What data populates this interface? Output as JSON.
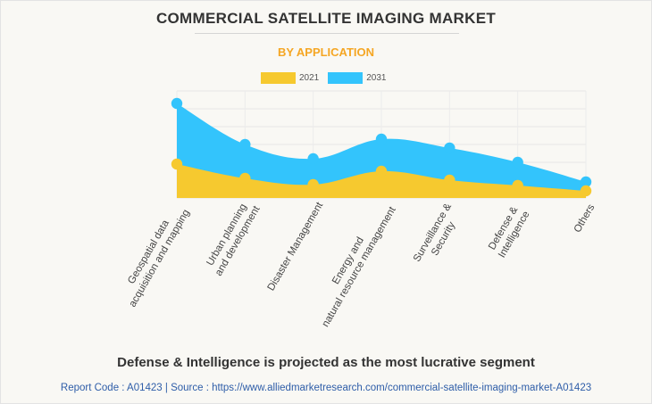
{
  "chart_data": {
    "type": "area",
    "title": "COMMERCIAL SATELLITE IMAGING MARKET",
    "subtitle": "BY APPLICATION",
    "categories": [
      [
        "Geospatial data",
        "acquisition and mapping"
      ],
      [
        "Urban planning",
        "and development"
      ],
      [
        "Disaster Management"
      ],
      [
        "Energy and",
        "natural resource management"
      ],
      [
        "Surveillance &",
        "Security"
      ],
      [
        "Defense &",
        "Intelligence"
      ],
      [
        "Others"
      ]
    ],
    "series": [
      {
        "name": "2021",
        "color": "#f6c92f",
        "values": [
          1.9,
          1.1,
          0.75,
          1.5,
          1.0,
          0.7,
          0.4
        ]
      },
      {
        "name": "2031",
        "color": "#33c4fc",
        "values": [
          5.3,
          3.0,
          2.2,
          3.3,
          2.8,
          2.0,
          0.9
        ]
      }
    ],
    "ylim": [
      0,
      6
    ],
    "grid": true,
    "legend": "top-center"
  },
  "footer": {
    "headline": "Defense & Intelligence is projected as the most lucrative segment",
    "source": "Report Code : A01423  |  Source : https://www.alliedmarketresearch.com/commercial-satellite-imaging-market-A01423"
  }
}
